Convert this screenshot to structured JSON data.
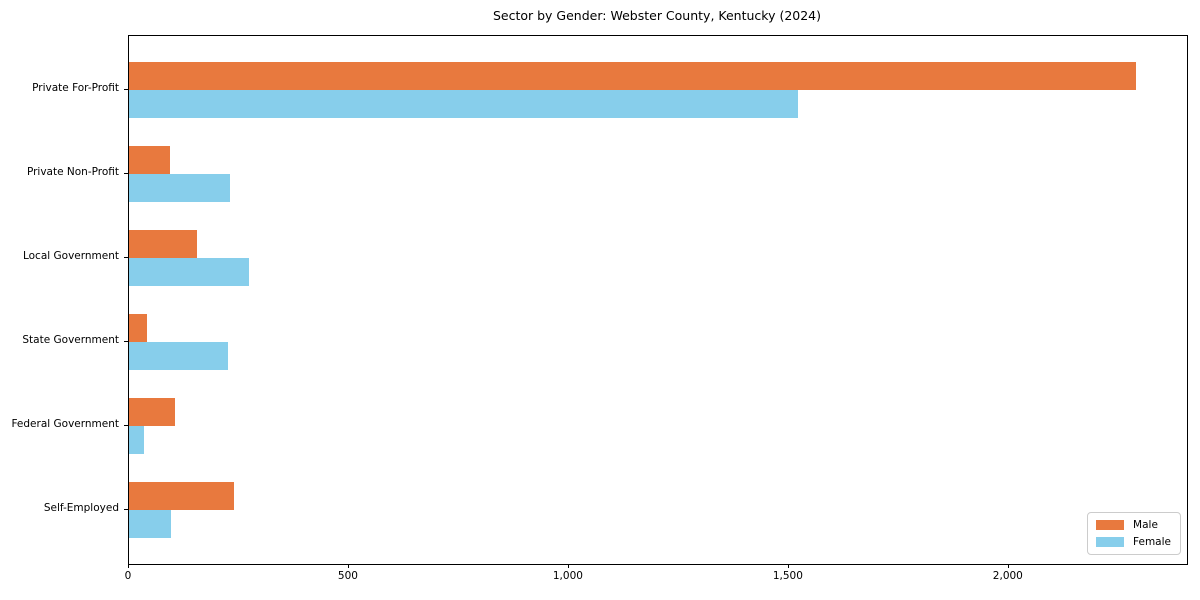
{
  "figure": {
    "background": "#ffffff",
    "axis_color": "#000000"
  },
  "chart_data": {
    "type": "bar",
    "orientation": "horizontal",
    "title": "Sector by Gender: Webster County, Kentucky (2024)",
    "xlabel": "",
    "ylabel": "",
    "categories": [
      "Private For-Profit",
      "Private Non-Profit",
      "Local Government",
      "State Government",
      "Federal Government",
      "Self-Employed"
    ],
    "series": [
      {
        "name": "Male",
        "color": "#e8793e",
        "values": [
          2290,
          93,
          155,
          40,
          104,
          238
        ]
      },
      {
        "name": "Female",
        "color": "#87ceeb",
        "values": [
          1520,
          230,
          272,
          224,
          33,
          95
        ]
      }
    ],
    "xlim": [
      0,
      2405
    ],
    "xticks": [
      0,
      500,
      1000,
      1500,
      2000
    ],
    "xtick_labels": [
      "0",
      "500",
      "1,000",
      "1,500",
      "2,000"
    ],
    "grid": false,
    "legend": {
      "position": "lower right",
      "entries": [
        "Male",
        "Female"
      ]
    }
  }
}
